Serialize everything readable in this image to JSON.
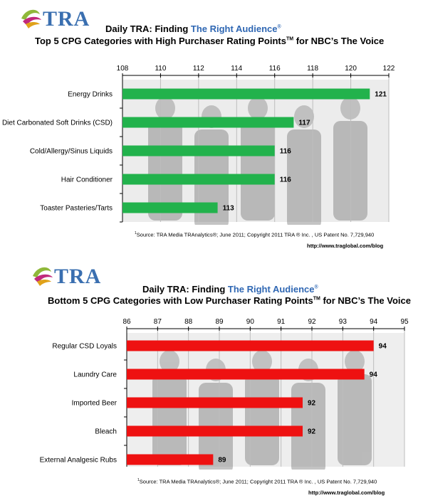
{
  "panels": [
    {
      "logo_text": "TRA",
      "title_prefix": "Daily TRA: Finding ",
      "title_highlight": "The Right Audience",
      "title_highlight_mark": "®",
      "subtitle": "Top 5 CPG Categories with High Purchaser Rating Points",
      "subtitle_mark": "TM",
      "subtitle_suffix": " for NBC’s The Voice",
      "source_mark": "1",
      "source_text": "Source:  TRA Media TRAnalytics®; June 2011; Copyright 2011 TRA ® Inc. , US Patent No. 7,729,940",
      "url": "http://www.traglobal.com/blog",
      "colors": {
        "bar": "#22b24c",
        "background_photo": "#c9c9c9"
      }
    },
    {
      "logo_text": "TRA",
      "title_prefix": "Daily TRA: Finding ",
      "title_highlight": "The Right Audience",
      "title_highlight_mark": "®",
      "subtitle": "Bottom 5 CPG Categories with Low Purchaser Rating Points",
      "subtitle_mark": "TM",
      "subtitle_suffix": " for NBC’s The Voice",
      "source_mark": "1",
      "source_text": "Source:  TRA Media TRAnalytics®; June 2011; Copyright 2011 TRA ® Inc. , US Patent No. 7,729,940",
      "url": "http://www.traglobal.com/blog",
      "colors": {
        "bar": "#ee1111",
        "background_photo": "#cfcfcf"
      }
    }
  ],
  "chart_data": [
    {
      "type": "bar",
      "orientation": "horizontal",
      "categories": [
        "Energy Drinks",
        "Diet Carbonated Soft Drinks (CSD)",
        "Cold/Allergy/Sinus Liquids",
        "Hair Conditioner",
        "Toaster Pasteries/Tarts"
      ],
      "values": [
        121,
        117,
        116,
        116,
        113
      ],
      "data_labels": [
        "121",
        "117",
        "116",
        "116",
        "113"
      ],
      "xlim": [
        108,
        122
      ],
      "xticks": [
        108,
        110,
        112,
        114,
        116,
        118,
        120,
        122
      ],
      "tick_labels": [
        "108",
        "110",
        "112",
        "114",
        "116",
        "118",
        "120",
        "122"
      ],
      "axis_position": "top",
      "grid": true
    },
    {
      "type": "bar",
      "orientation": "horizontal",
      "categories": [
        "Regular CSD Loyals",
        "Laundry Care",
        "Imported Beer",
        "Bleach",
        "External Analgesic Rubs"
      ],
      "values": [
        94,
        93.7,
        91.7,
        91.7,
        88.8
      ],
      "data_labels": [
        "94",
        "94",
        "92",
        "92",
        "89"
      ],
      "xlim": [
        86,
        95
      ],
      "xticks": [
        86,
        87,
        88,
        89,
        90,
        91,
        92,
        93,
        94,
        95
      ],
      "tick_labels": [
        "86",
        "87",
        "88",
        "89",
        "90",
        "91",
        "92",
        "93",
        "94",
        "95"
      ],
      "axis_position": "top",
      "grid": true
    }
  ]
}
